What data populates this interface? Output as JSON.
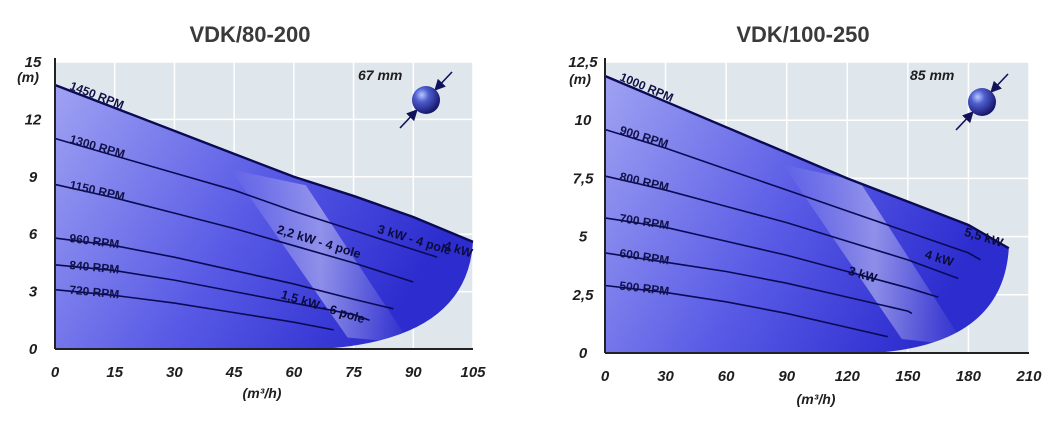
{
  "chart_data": [
    {
      "type": "line",
      "title": "VDK/80-200",
      "xlabel": "(m³/h)",
      "ylabel": "(m)",
      "xlim": [
        0,
        105
      ],
      "ylim": [
        0,
        15
      ],
      "xticks": [
        "0",
        "15",
        "30",
        "45",
        "60",
        "75",
        "90",
        "105"
      ],
      "yticks": [
        "0",
        "3",
        "6",
        "9",
        "12",
        "15"
      ],
      "grid": true,
      "diameter_label": "67 mm",
      "colors": {
        "fill": "#3a3ae0",
        "line": "#0a0a55",
        "plot_bg": "#dfe6ec"
      },
      "series": [
        {
          "name": "1450 RPM",
          "x": [
            0,
            15,
            30,
            45,
            60,
            75,
            90,
            105
          ],
          "y": [
            13.8,
            12.6,
            11.4,
            10.2,
            9.0,
            8.0,
            6.9,
            5.6
          ]
        },
        {
          "name": "1300 RPM",
          "x": [
            0,
            15,
            30,
            45,
            60,
            75,
            90,
            96
          ],
          "y": [
            11.0,
            10.1,
            9.2,
            8.3,
            7.2,
            6.2,
            5.2,
            4.8
          ]
        },
        {
          "name": "1150 RPM",
          "x": [
            0,
            15,
            30,
            45,
            60,
            75,
            90
          ],
          "y": [
            8.6,
            7.9,
            7.1,
            6.3,
            5.4,
            4.5,
            3.5
          ]
        },
        {
          "name": "960 RPM",
          "x": [
            0,
            15,
            30,
            45,
            60,
            75,
            85
          ],
          "y": [
            5.8,
            5.4,
            4.8,
            4.1,
            3.4,
            2.6,
            2.1
          ]
        },
        {
          "name": "840 RPM",
          "x": [
            0,
            15,
            30,
            45,
            60,
            75,
            79
          ],
          "y": [
            4.4,
            4.1,
            3.6,
            3.0,
            2.4,
            1.8,
            1.5
          ]
        },
        {
          "name": "720 RPM",
          "x": [
            0,
            15,
            30,
            45,
            60,
            70
          ],
          "y": [
            3.1,
            2.8,
            2.4,
            1.9,
            1.4,
            1.0
          ]
        }
      ],
      "power_labels": [
        {
          "text": "2,2 kW - 4 pole",
          "x": 66,
          "y": 5.4
        },
        {
          "text": "3 kW - 4 pole",
          "x": 90,
          "y": 5.5
        },
        {
          "text": "4 kW",
          "x": 101,
          "y": 5.0
        },
        {
          "text": "1,5 kW - 6 pole",
          "x": 67,
          "y": 2.0
        }
      ]
    },
    {
      "type": "line",
      "title": "VDK/100-250",
      "xlabel": "(m³/h)",
      "ylabel": "(m)",
      "xlim": [
        0,
        210
      ],
      "ylim": [
        0,
        12.5
      ],
      "xticks": [
        "0",
        "30",
        "60",
        "90",
        "120",
        "150",
        "180",
        "210"
      ],
      "yticks": [
        "0",
        "2,5",
        "5",
        "7,5",
        "10",
        "12,5"
      ],
      "grid": true,
      "diameter_label": "85 mm",
      "colors": {
        "fill": "#3a3ae0",
        "line": "#0a0a55",
        "plot_bg": "#dfe6ec"
      },
      "series": [
        {
          "name": "1000 RPM",
          "x": [
            0,
            30,
            60,
            90,
            120,
            150,
            180,
            200
          ],
          "y": [
            11.9,
            10.8,
            9.7,
            8.6,
            7.5,
            6.5,
            5.5,
            4.5
          ]
        },
        {
          "name": "900 RPM",
          "x": [
            0,
            30,
            60,
            90,
            120,
            150,
            180,
            186
          ],
          "y": [
            9.6,
            8.8,
            7.9,
            7.0,
            6.1,
            5.2,
            4.3,
            4.0
          ]
        },
        {
          "name": "800 RPM",
          "x": [
            0,
            30,
            60,
            90,
            120,
            150,
            175
          ],
          "y": [
            7.6,
            7.0,
            6.3,
            5.6,
            4.8,
            4.0,
            3.2
          ]
        },
        {
          "name": "700 RPM",
          "x": [
            0,
            30,
            60,
            90,
            120,
            150,
            165
          ],
          "y": [
            5.8,
            5.4,
            4.8,
            4.2,
            3.5,
            2.8,
            2.4
          ]
        },
        {
          "name": "600 RPM",
          "x": [
            0,
            30,
            60,
            90,
            120,
            150,
            152
          ],
          "y": [
            4.3,
            3.9,
            3.5,
            3.0,
            2.4,
            1.8,
            1.7
          ]
        },
        {
          "name": "500 RPM",
          "x": [
            0,
            30,
            60,
            90,
            120,
            140
          ],
          "y": [
            2.9,
            2.6,
            2.2,
            1.7,
            1.1,
            0.7
          ]
        }
      ],
      "power_labels": [
        {
          "text": "3 kW",
          "x": 127,
          "y": 3.2
        },
        {
          "text": "4 kW",
          "x": 165,
          "y": 3.9
        },
        {
          "text": "5,5 kW",
          "x": 187,
          "y": 4.8
        }
      ]
    }
  ]
}
